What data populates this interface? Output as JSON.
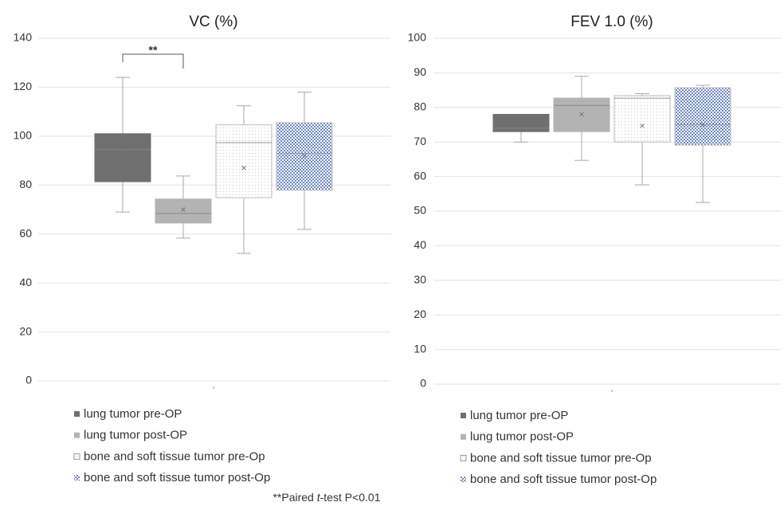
{
  "chart_data": [
    {
      "type": "box",
      "title": "VC (%)",
      "ylim": [
        0,
        140
      ],
      "yticks": [
        0,
        20,
        40,
        60,
        80,
        100,
        120,
        140
      ],
      "grid": true,
      "annotation": "**",
      "series": [
        {
          "name": "lung tumor pre-OP",
          "color": "#6f6f6f",
          "min": 69,
          "q1": 81.4,
          "median": 94.5,
          "q3": 101,
          "max": 124,
          "mean": 94
        },
        {
          "name": "lung tumor post-OP",
          "color": "#b3b3b3",
          "min": 58.3,
          "q1": 64.5,
          "median": 68.4,
          "q3": 74.3,
          "max": 83.7,
          "mean": 70
        },
        {
          "name": "bone and soft tissue tumor pre-Op",
          "color": "#ffffff",
          "pattern": "dots",
          "min": 52.1,
          "q1": 74.9,
          "median": 97.4,
          "q3": 104.6,
          "max": 112.4,
          "mean": 87
        },
        {
          "name": "bone and soft tissue tumor post-Op",
          "color": "#8da3d3",
          "pattern": "checker",
          "min": 61.9,
          "q1": 77.9,
          "median": 93,
          "q3": 105.5,
          "max": 118,
          "mean": 92
        }
      ]
    },
    {
      "type": "box",
      "title": "FEV 1.0  (%)",
      "ylim": [
        0,
        100
      ],
      "yticks": [
        0,
        10,
        20,
        30,
        40,
        50,
        60,
        70,
        80,
        90,
        100
      ],
      "grid": true,
      "series": [
        {
          "name": "lung tumor pre-OP",
          "color": "#6f6f6f",
          "min": 70,
          "q1": 73,
          "median": 74,
          "q3": 78,
          "max": 78,
          "mean": 74
        },
        {
          "name": "lung tumor post-OP",
          "color": "#b3b3b3",
          "min": 64.7,
          "q1": 73,
          "median": 80.6,
          "q3": 82.7,
          "max": 89,
          "mean": 78
        },
        {
          "name": "bone and soft tissue tumor pre-Op",
          "color": "#ffffff",
          "pattern": "dots",
          "min": 57.6,
          "q1": 70,
          "median": 82.7,
          "q3": 83.4,
          "max": 84,
          "mean": 74.7
        },
        {
          "name": "bone and soft tissue tumor post-Op",
          "color": "#8da3d3",
          "pattern": "checker",
          "min": 52.5,
          "q1": 69.1,
          "median": 75,
          "q3": 85.7,
          "max": 86.4,
          "mean": 75
        }
      ]
    }
  ],
  "footnote": {
    "before": "**Paired ",
    "italic": "t",
    "after": "-test P<0.01"
  }
}
